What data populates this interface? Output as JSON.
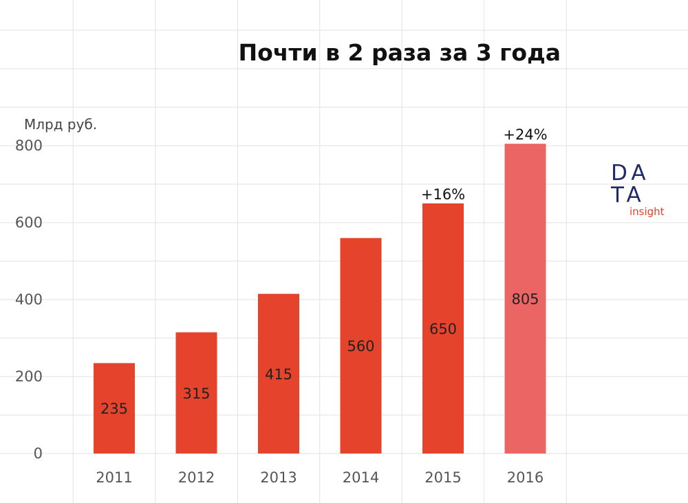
{
  "chart_data": {
    "type": "bar",
    "title": "Почти в 2 раза за 3 года",
    "ylabel": "Млрд руб.",
    "xlabel": "",
    "categories": [
      "2011",
      "2012",
      "2013",
      "2014",
      "2015",
      "2016"
    ],
    "values": [
      235,
      315,
      415,
      560,
      650,
      805
    ],
    "value_labels": [
      "235",
      "315",
      "415",
      "560",
      "650",
      "805"
    ],
    "yticks": [
      "0",
      "200",
      "400",
      "600",
      "800"
    ],
    "ytick_values": [
      0,
      200,
      400,
      600,
      800
    ],
    "ylim": [
      0,
      900
    ],
    "annotations": [
      {
        "category": "2015",
        "text": "+16%"
      },
      {
        "category": "2016",
        "text": "+24%"
      }
    ],
    "colors": {
      "bar": "#e5432b",
      "bar_highlight": "#ec6565"
    },
    "highlight_category": "2016",
    "grid": true,
    "legend": "none"
  },
  "logo": {
    "line1": "DA",
    "line2": "TA",
    "sub": "insight"
  }
}
